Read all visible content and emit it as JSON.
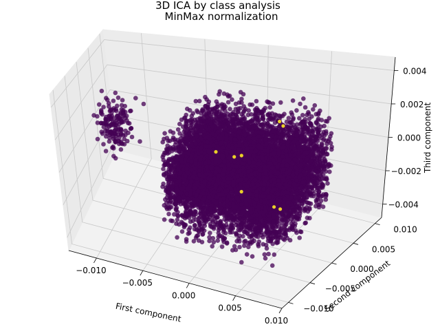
{
  "chart_data": {
    "type": "scatter",
    "projection": "3d",
    "title": [
      "3D ICA by class analysis",
      "MinMax normalization"
    ],
    "xlabel": "First component",
    "ylabel": "Second component",
    "zlabel": "Third component",
    "xlim": [
      -0.013,
      0.01
    ],
    "ylim": [
      -0.0115,
      0.0115
    ],
    "zlim": [
      -0.0048,
      0.0048
    ],
    "xticks": [
      "−0.010",
      "−0.005",
      "0.000",
      "0.005",
      "0.010"
    ],
    "yticks": [
      "−0.010",
      "−0.005",
      "0.000",
      "0.005",
      "0.010"
    ],
    "zticks": [
      "−0.004",
      "−0.002",
      "0.000",
      "0.002",
      "0.004"
    ],
    "grid": true,
    "colormap": "viridis",
    "colors": {
      "class_0": "#440154",
      "class_1": "#fde725"
    },
    "series": [
      {
        "color": "#440154",
        "description_clusters": [
          {
            "x_range": [
              -0.004,
              0.007
            ],
            "y_range": [
              -0.007,
              0.007
            ],
            "z_range": [
              -0.0045,
              0.0035
            ],
            "count": 9000
          },
          {
            "x_range": [
              -0.013,
              -0.008
            ],
            "y_range": [
              -0.003,
              0.006
            ],
            "z_range": [
              -0.002,
              0.003
            ],
            "count": 160
          }
        ]
      },
      {
        "color": "#fde725",
        "points": [
          [
            0.004,
            0.002,
            0.0025
          ],
          [
            0.0045,
            0.0015,
            0.0024
          ],
          [
            0.001,
            -0.001,
            0.0006
          ],
          [
            -0.001,
            0.0,
            0.0004
          ],
          [
            0.002,
            -0.002,
            -0.0012
          ],
          [
            0.003,
            0.004,
            -0.0035
          ],
          [
            0.0035,
            0.0042,
            -0.0036
          ],
          [
            0.001,
            0.001,
            0.0002
          ]
        ]
      }
    ]
  }
}
